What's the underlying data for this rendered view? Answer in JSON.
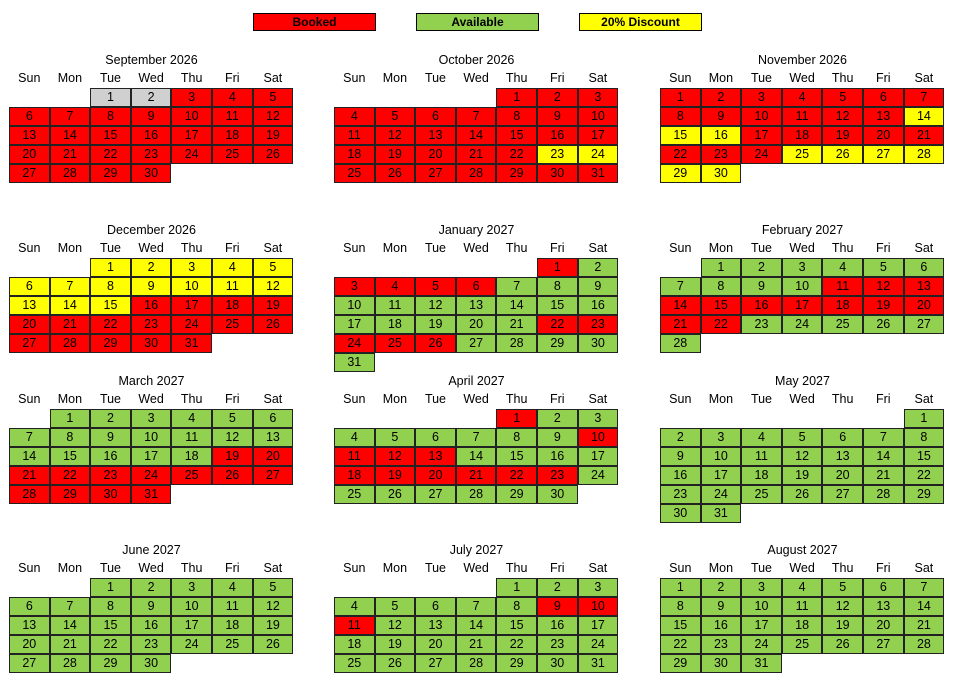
{
  "colors": {
    "booked": "#ff0000",
    "available": "#92d050",
    "discount": "#ffff00",
    "unavailable": "#d0d0d0"
  },
  "legend": [
    {
      "label": "Booked",
      "status": "booked"
    },
    {
      "label": "Available",
      "status": "available"
    },
    {
      "label": "20% Discount",
      "status": "discount"
    }
  ],
  "weekdays": [
    "Sun",
    "Mon",
    "Tue",
    "Wed",
    "Thu",
    "Fri",
    "Sat"
  ],
  "months": [
    {
      "title": "September 2026",
      "first_weekday": 2,
      "days": 30,
      "default": "booked",
      "ranges": [
        {
          "from": 1,
          "to": 2,
          "status": "unavailable"
        }
      ]
    },
    {
      "title": "October 2026",
      "first_weekday": 4,
      "days": 31,
      "default": "booked",
      "ranges": [
        {
          "from": 23,
          "to": 24,
          "status": "discount"
        }
      ]
    },
    {
      "title": "November 2026",
      "first_weekday": 0,
      "days": 30,
      "default": "booked",
      "ranges": [
        {
          "from": 14,
          "to": 16,
          "status": "discount"
        },
        {
          "from": 25,
          "to": 30,
          "status": "discount"
        }
      ]
    },
    {
      "title": "December 2026",
      "first_weekday": 2,
      "days": 31,
      "default": "booked",
      "ranges": [
        {
          "from": 1,
          "to": 15,
          "status": "discount"
        }
      ]
    },
    {
      "title": "January 2027",
      "first_weekday": 5,
      "days": 31,
      "default": "available",
      "ranges": [
        {
          "from": 1,
          "to": 1,
          "status": "booked"
        },
        {
          "from": 3,
          "to": 6,
          "status": "booked"
        },
        {
          "from": 22,
          "to": 26,
          "status": "booked"
        }
      ]
    },
    {
      "title": "February 2027",
      "first_weekday": 1,
      "days": 28,
      "default": "available",
      "ranges": [
        {
          "from": 11,
          "to": 22,
          "status": "booked"
        }
      ]
    },
    {
      "title": "March 2027",
      "first_weekday": 1,
      "days": 31,
      "default": "available",
      "ranges": [
        {
          "from": 19,
          "to": 31,
          "status": "booked"
        }
      ]
    },
    {
      "title": "April 2027",
      "first_weekday": 4,
      "days": 30,
      "default": "available",
      "ranges": [
        {
          "from": 1,
          "to": 1,
          "status": "booked"
        },
        {
          "from": 10,
          "to": 13,
          "status": "booked"
        },
        {
          "from": 18,
          "to": 23,
          "status": "booked"
        }
      ]
    },
    {
      "title": "May 2027",
      "first_weekday": 6,
      "days": 31,
      "default": "available",
      "ranges": []
    },
    {
      "title": "June 2027",
      "first_weekday": 2,
      "days": 30,
      "default": "available",
      "ranges": []
    },
    {
      "title": "July 2027",
      "first_weekday": 4,
      "days": 31,
      "default": "available",
      "ranges": [
        {
          "from": 9,
          "to": 11,
          "status": "booked"
        }
      ]
    },
    {
      "title": "August 2027",
      "first_weekday": 0,
      "days": 31,
      "default": "available",
      "ranges": []
    }
  ]
}
